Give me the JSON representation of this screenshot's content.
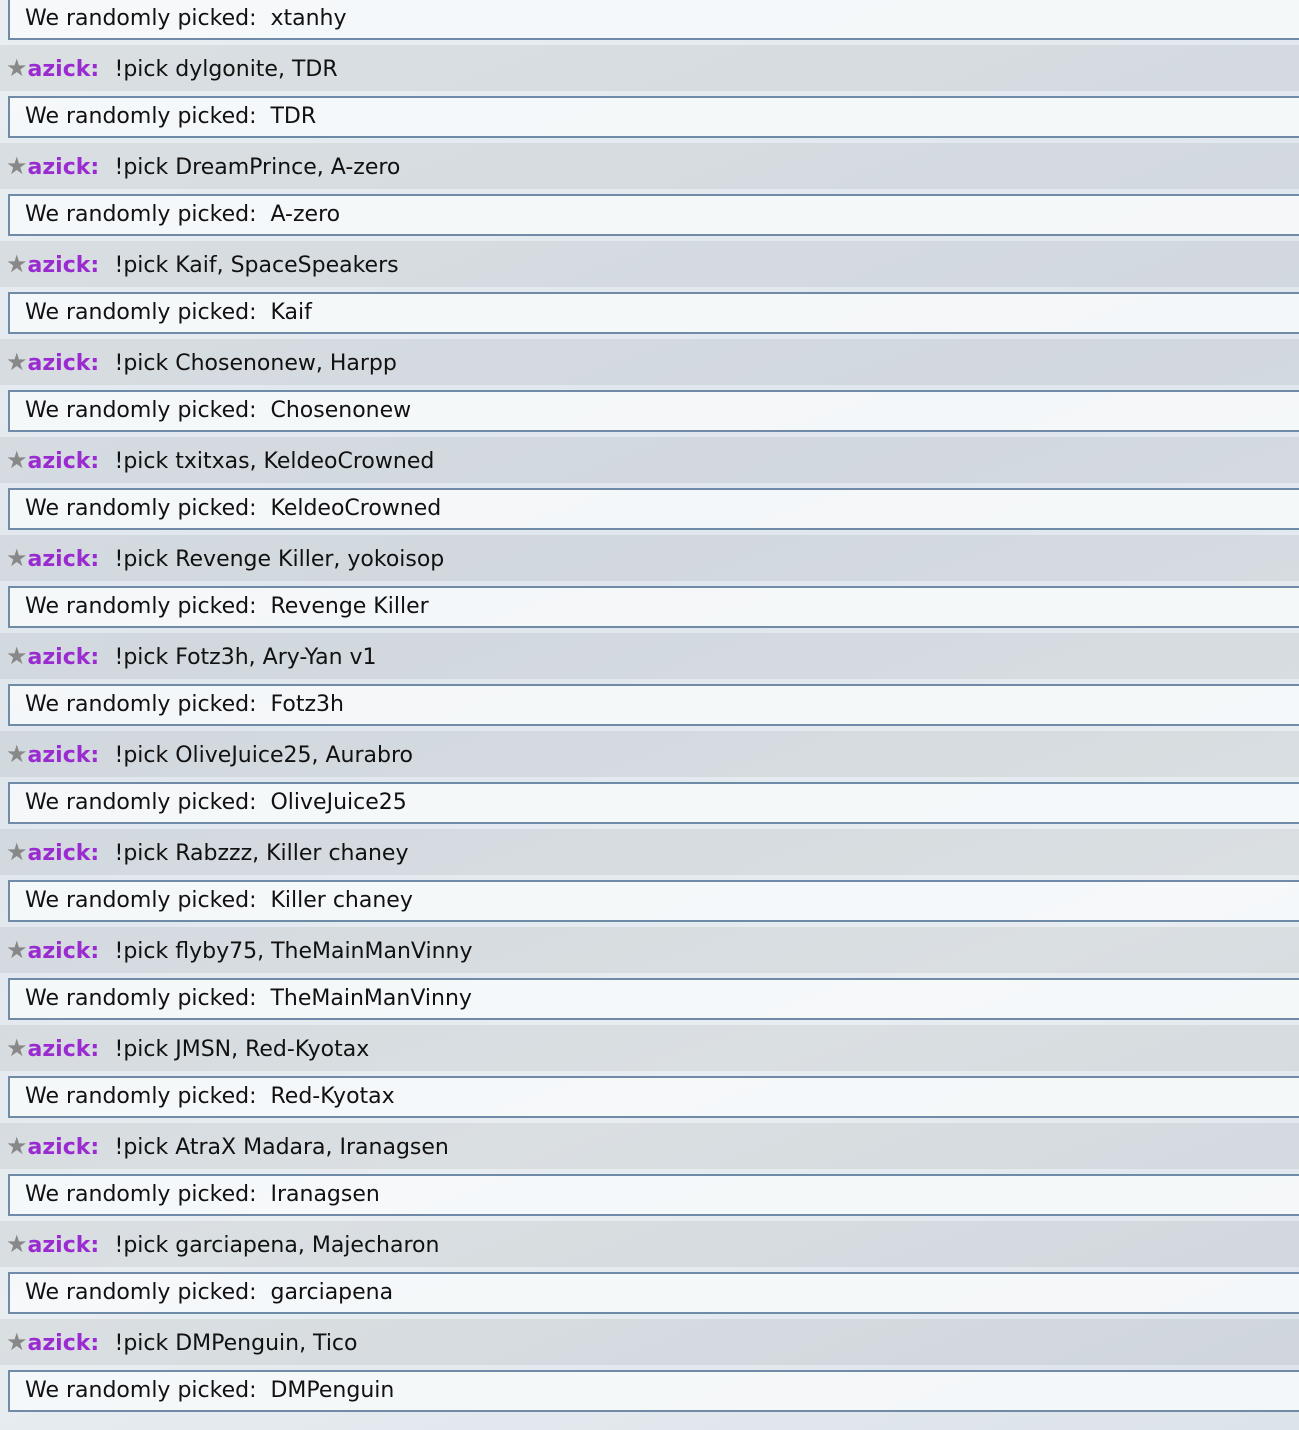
{
  "first_result": "xtanhy",
  "result_prefix": "We randomly picked:  ",
  "user": {
    "name": "azick:",
    "rank_icon": "star-icon",
    "name_color": "#9a2bd0"
  },
  "messages": [
    {
      "command": "!pick dylgonite, TDR",
      "result": "TDR"
    },
    {
      "command": "!pick DreamPrince, A-zero",
      "result": "A-zero"
    },
    {
      "command": "!pick Kaif, SpaceSpeakers",
      "result": "Kaif"
    },
    {
      "command": "!pick Chosenonew, Harpp",
      "result": "Chosenonew"
    },
    {
      "command": "!pick txitxas, KeldeoCrowned",
      "result": "KeldeoCrowned"
    },
    {
      "command": "!pick Revenge Killer, yokoisop",
      "result": "Revenge Killer"
    },
    {
      "command": "!pick Fotz3h, Ary-Yan v1",
      "result": "Fotz3h"
    },
    {
      "command": "!pick OliveJuice25, Aurabro",
      "result": "OliveJuice25"
    },
    {
      "command": "!pick Rabzzz, Killer chaney",
      "result": "Killer chaney"
    },
    {
      "command": "!pick flyby75, TheMainManVinny",
      "result": "TheMainManVinny"
    },
    {
      "command": "!pick JMSN, Red-Kyotax",
      "result": "Red-Kyotax"
    },
    {
      "command": "!pick AtraX Madara, Iranagsen",
      "result": "Iranagsen"
    },
    {
      "command": "!pick garciapena, Majecharon",
      "result": "garciapena"
    },
    {
      "command": "!pick DMPenguin, Tico",
      "result": "DMPenguin"
    }
  ]
}
